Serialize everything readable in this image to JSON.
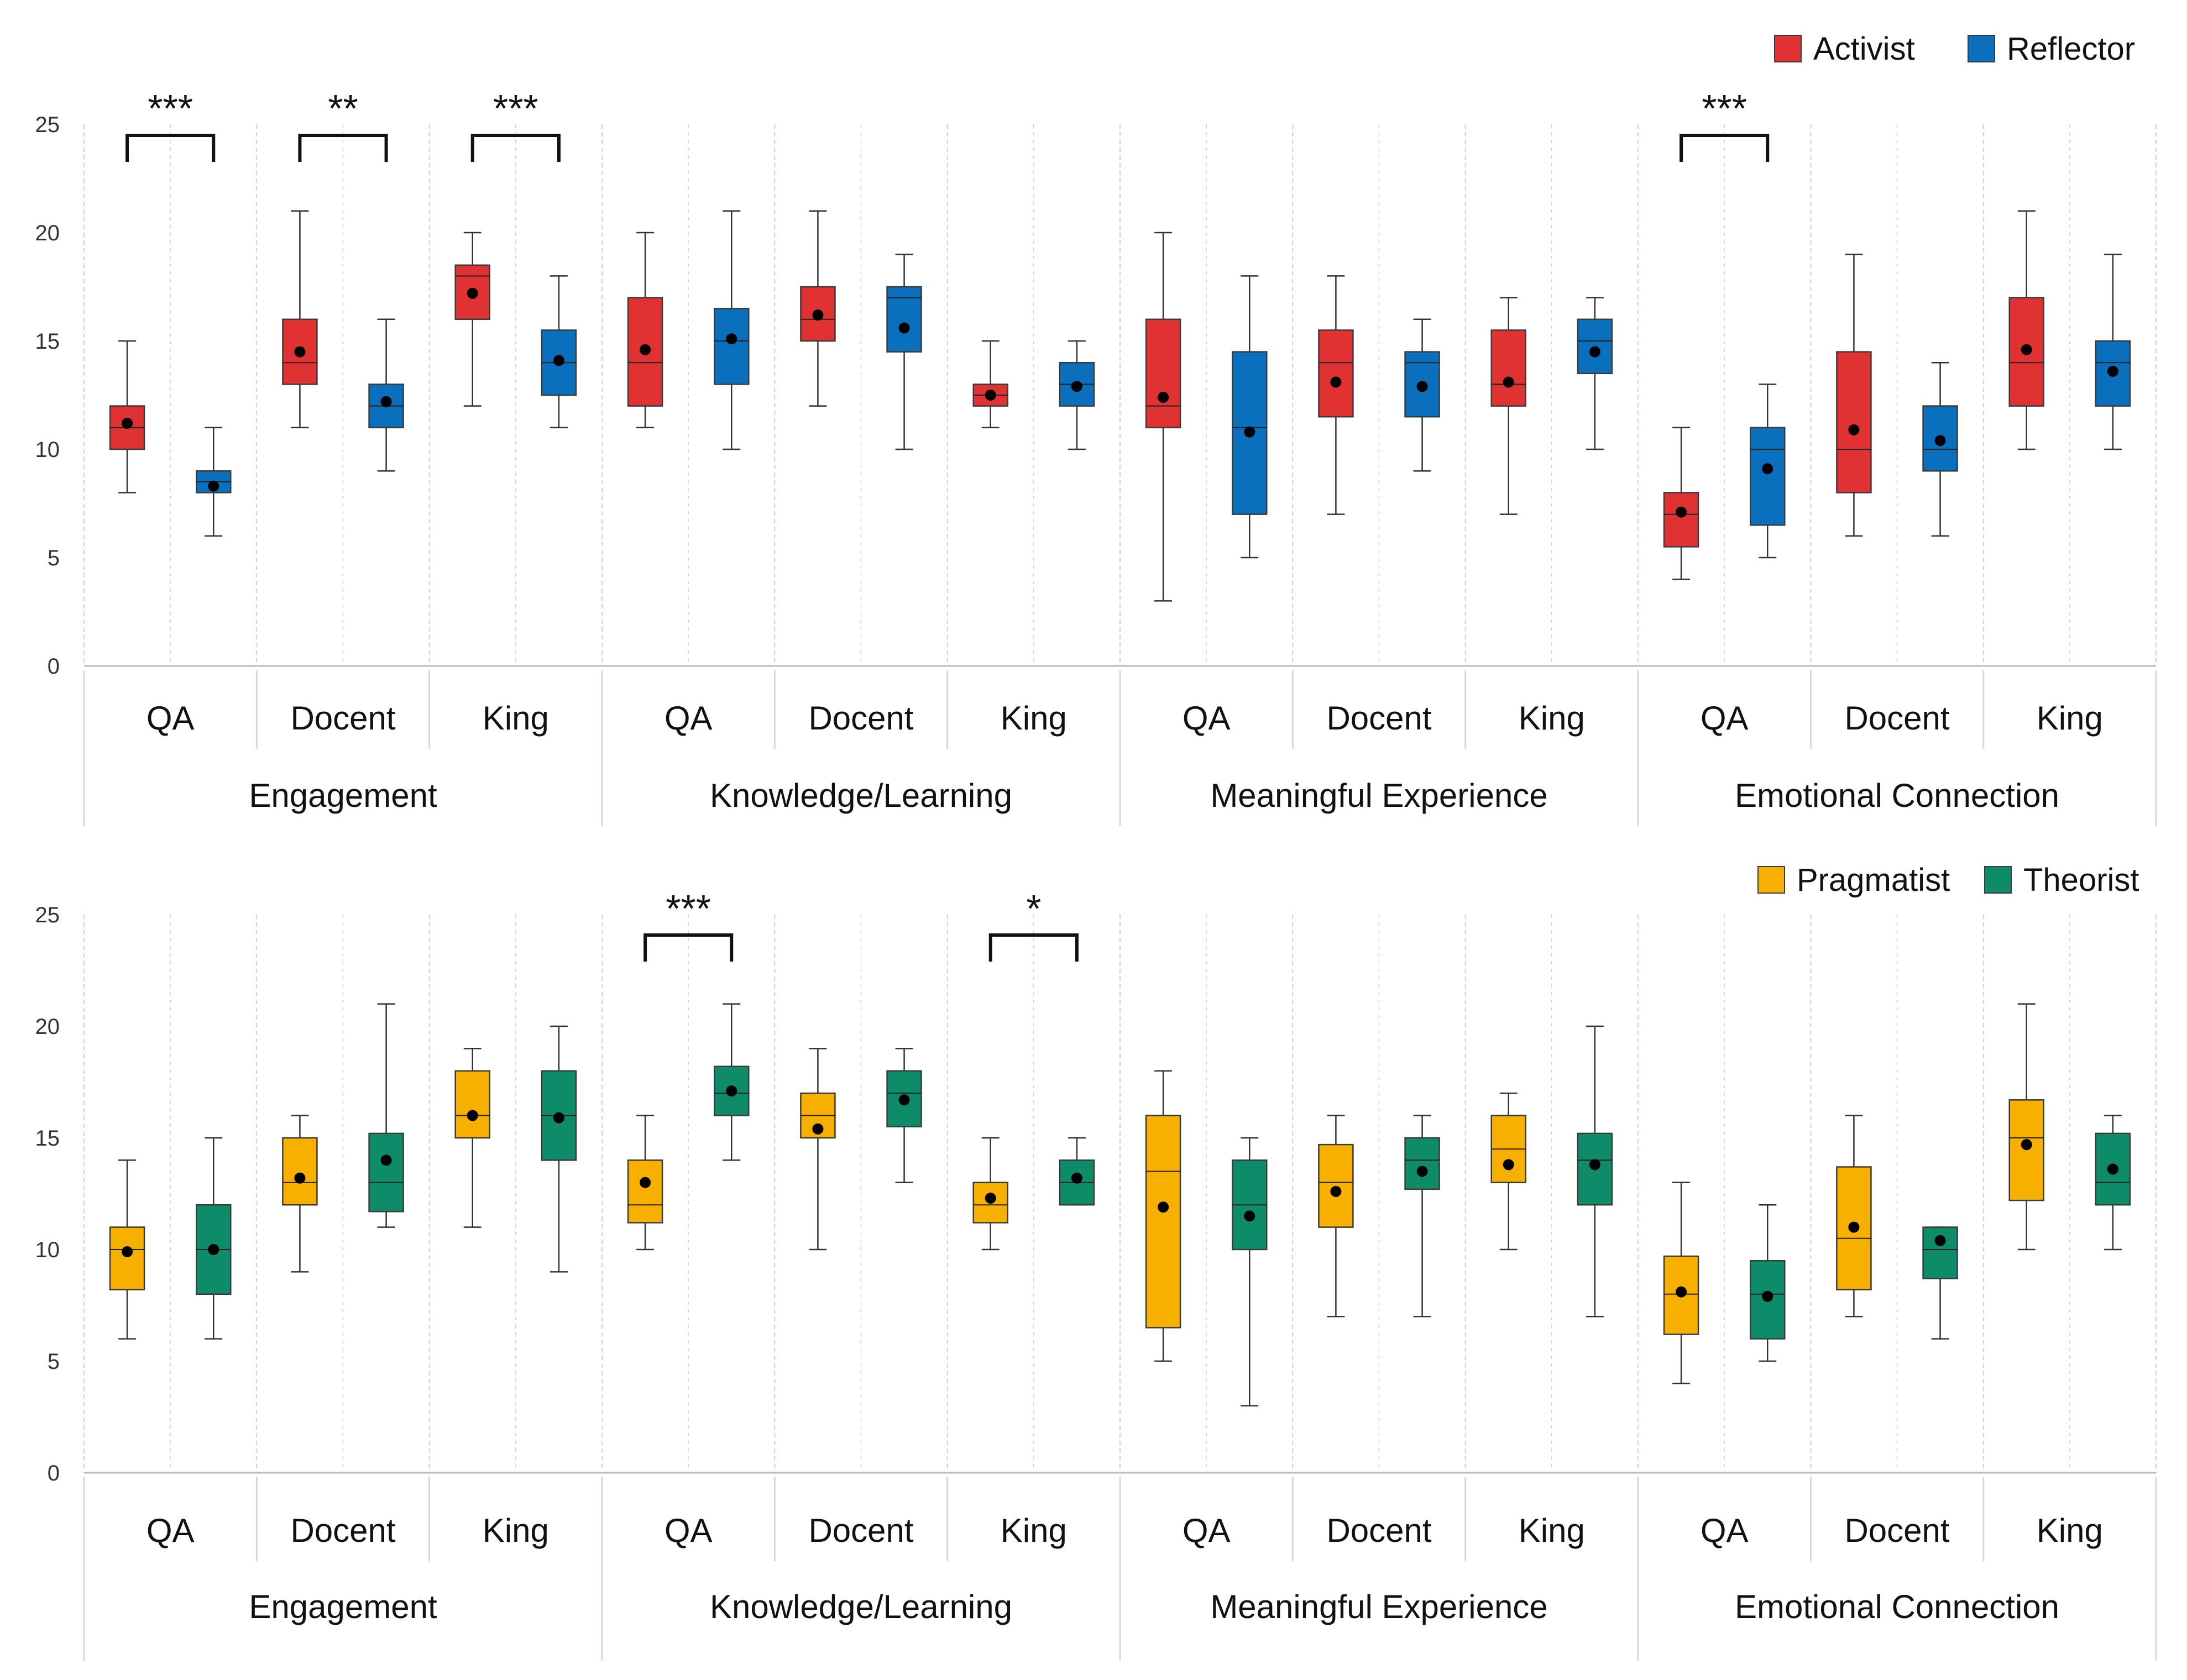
{
  "colors": {
    "activist": "#e03232",
    "reflector": "#0a6fbd",
    "pragmatist": "#f7b000",
    "theorist": "#0e8c6a",
    "median_line": "#222222",
    "mean_dot": "#000000",
    "grid": "#cfcfcf",
    "axis": "#bbbbbb"
  },
  "chart_data": [
    {
      "type": "box",
      "ylim": [
        0,
        25
      ],
      "yticks": [
        0,
        5,
        10,
        15,
        20,
        25
      ],
      "groups": [
        "Engagement",
        "Knowledge/Learning",
        "Meaningful Experience",
        "Emotional Connection"
      ],
      "conditions": [
        "QA",
        "Docent",
        "King"
      ],
      "legend_position": "top-right",
      "series": [
        {
          "name": "Activist",
          "color": "#e03232",
          "boxes": [
            {
              "min": 8,
              "q1": 10,
              "median": 11,
              "q3": 12,
              "max": 15,
              "mean": 11.2
            },
            {
              "min": 11,
              "q1": 13,
              "median": 14,
              "q3": 16,
              "max": 21,
              "mean": 14.5
            },
            {
              "min": 12,
              "q1": 16,
              "median": 18,
              "q3": 18.5,
              "max": 20,
              "mean": 17.2
            },
            {
              "min": 11,
              "q1": 12,
              "median": 14,
              "q3": 17,
              "max": 20,
              "mean": 14.6
            },
            {
              "min": 12,
              "q1": 15,
              "median": 16,
              "q3": 17.5,
              "max": 21,
              "mean": 16.2
            },
            {
              "min": 11,
              "q1": 12,
              "median": 12.5,
              "q3": 13,
              "max": 15,
              "mean": 12.5
            },
            {
              "min": 3,
              "q1": 11,
              "median": 12,
              "q3": 16,
              "max": 20,
              "mean": 12.4
            },
            {
              "min": 7,
              "q1": 11.5,
              "median": 14,
              "q3": 15.5,
              "max": 18,
              "mean": 13.1
            },
            {
              "min": 7,
              "q1": 12,
              "median": 13,
              "q3": 15.5,
              "max": 17,
              "mean": 13.1
            },
            {
              "min": 4,
              "q1": 5.5,
              "median": 7,
              "q3": 8,
              "max": 11,
              "mean": 7.1
            },
            {
              "min": 6,
              "q1": 8,
              "median": 10,
              "q3": 14.5,
              "max": 19,
              "mean": 10.9
            },
            {
              "min": 10,
              "q1": 12,
              "median": 14,
              "q3": 17,
              "max": 21,
              "mean": 14.6
            }
          ]
        },
        {
          "name": "Reflector",
          "color": "#0a6fbd",
          "boxes": [
            {
              "min": 6,
              "q1": 8,
              "median": 8.5,
              "q3": 9,
              "max": 11,
              "mean": 8.3
            },
            {
              "min": 9,
              "q1": 11,
              "median": 12,
              "q3": 13,
              "max": 16,
              "mean": 12.2
            },
            {
              "min": 11,
              "q1": 12.5,
              "median": 14,
              "q3": 15.5,
              "max": 18,
              "mean": 14.1
            },
            {
              "min": 10,
              "q1": 13,
              "median": 15,
              "q3": 16.5,
              "max": 21,
              "mean": 15.1
            },
            {
              "min": 10,
              "q1": 14.5,
              "median": 17,
              "q3": 17.5,
              "max": 19,
              "mean": 15.6
            },
            {
              "min": 10,
              "q1": 12,
              "median": 13,
              "q3": 14,
              "max": 15,
              "mean": 12.9
            },
            {
              "min": 5,
              "q1": 7,
              "median": 11,
              "q3": 14.5,
              "max": 18,
              "mean": 10.8
            },
            {
              "min": 9,
              "q1": 11.5,
              "median": 14,
              "q3": 14.5,
              "max": 16,
              "mean": 12.9
            },
            {
              "min": 10,
              "q1": 13.5,
              "median": 15,
              "q3": 16,
              "max": 17,
              "mean": 14.5
            },
            {
              "min": 5,
              "q1": 6.5,
              "median": 10,
              "q3": 11,
              "max": 13,
              "mean": 9.1
            },
            {
              "min": 6,
              "q1": 9,
              "median": 10,
              "q3": 12,
              "max": 14,
              "mean": 10.4
            },
            {
              "min": 10,
              "q1": 12,
              "median": 14,
              "q3": 15,
              "max": 19,
              "mean": 13.6
            }
          ]
        }
      ],
      "significance": [
        {
          "label": "***",
          "condition_index": 0
        },
        {
          "label": "**",
          "condition_index": 1
        },
        {
          "label": "***",
          "condition_index": 2
        },
        {
          "label": "***",
          "condition_index": 9
        }
      ]
    },
    {
      "type": "box",
      "ylim": [
        0,
        25
      ],
      "yticks": [
        0,
        5,
        10,
        15,
        20,
        25
      ],
      "groups": [
        "Engagement",
        "Knowledge/Learning",
        "Meaningful Experience",
        "Emotional Connection"
      ],
      "conditions": [
        "QA",
        "Docent",
        "King"
      ],
      "legend_position": "top-right",
      "series": [
        {
          "name": "Pragmatist",
          "color": "#f7b000",
          "boxes": [
            {
              "min": 6,
              "q1": 8.2,
              "median": 10,
              "q3": 11,
              "max": 14,
              "mean": 9.9
            },
            {
              "min": 9,
              "q1": 12,
              "median": 13,
              "q3": 15,
              "max": 16,
              "mean": 13.2
            },
            {
              "min": 11,
              "q1": 15,
              "median": 16,
              "q3": 18,
              "max": 19,
              "mean": 16
            },
            {
              "min": 10,
              "q1": 11.2,
              "median": 12,
              "q3": 14,
              "max": 16,
              "mean": 13
            },
            {
              "min": 10,
              "q1": 15,
              "median": 16,
              "q3": 17,
              "max": 19,
              "mean": 15.4
            },
            {
              "min": 10,
              "q1": 11.2,
              "median": 12,
              "q3": 13,
              "max": 15,
              "mean": 12.3
            },
            {
              "min": 5,
              "q1": 6.5,
              "median": 13.5,
              "q3": 16,
              "max": 18,
              "mean": 11.9
            },
            {
              "min": 7,
              "q1": 11,
              "median": 13,
              "q3": 14.7,
              "max": 16,
              "mean": 12.6
            },
            {
              "min": 10,
              "q1": 13,
              "median": 14.5,
              "q3": 16,
              "max": 17,
              "mean": 13.8
            },
            {
              "min": 4,
              "q1": 6.2,
              "median": 8,
              "q3": 9.7,
              "max": 13,
              "mean": 8.1
            },
            {
              "min": 7,
              "q1": 8.2,
              "median": 10.5,
              "q3": 13.7,
              "max": 16,
              "mean": 11
            },
            {
              "min": 10,
              "q1": 12.2,
              "median": 15,
              "q3": 16.7,
              "max": 21,
              "mean": 14.7
            }
          ]
        },
        {
          "name": "Theorist",
          "color": "#0e8c6a",
          "boxes": [
            {
              "min": 6,
              "q1": 8,
              "median": 10,
              "q3": 12,
              "max": 15,
              "mean": 10
            },
            {
              "min": 11,
              "q1": 11.7,
              "median": 13,
              "q3": 15.2,
              "max": 21,
              "mean": 14
            },
            {
              "min": 9,
              "q1": 14,
              "median": 16,
              "q3": 18,
              "max": 20,
              "mean": 15.9
            },
            {
              "min": 14,
              "q1": 16,
              "median": 17,
              "q3": 18.2,
              "max": 21,
              "mean": 17.1
            },
            {
              "min": 13,
              "q1": 15.5,
              "median": 17,
              "q3": 18,
              "max": 19,
              "mean": 16.7
            },
            {
              "min": 12,
              "q1": 12,
              "median": 13,
              "q3": 14,
              "max": 15,
              "mean": 13.2
            },
            {
              "min": 3,
              "q1": 10,
              "median": 12,
              "q3": 14,
              "max": 15,
              "mean": 11.5
            },
            {
              "min": 7,
              "q1": 12.7,
              "median": 14,
              "q3": 15,
              "max": 16,
              "mean": 13.5
            },
            {
              "min": 7,
              "q1": 12,
              "median": 14,
              "q3": 15.2,
              "max": 20,
              "mean": 13.8
            },
            {
              "min": 5,
              "q1": 6,
              "median": 8,
              "q3": 9.5,
              "max": 12,
              "mean": 7.9
            },
            {
              "min": 6,
              "q1": 8.7,
              "median": 10,
              "q3": 11,
              "max": 11,
              "mean": 10.4
            },
            {
              "min": 10,
              "q1": 12,
              "median": 13,
              "q3": 15.2,
              "max": 16,
              "mean": 13.6
            }
          ]
        }
      ],
      "significance": [
        {
          "label": "***",
          "condition_index": 3
        },
        {
          "label": "*",
          "condition_index": 5
        }
      ]
    }
  ]
}
